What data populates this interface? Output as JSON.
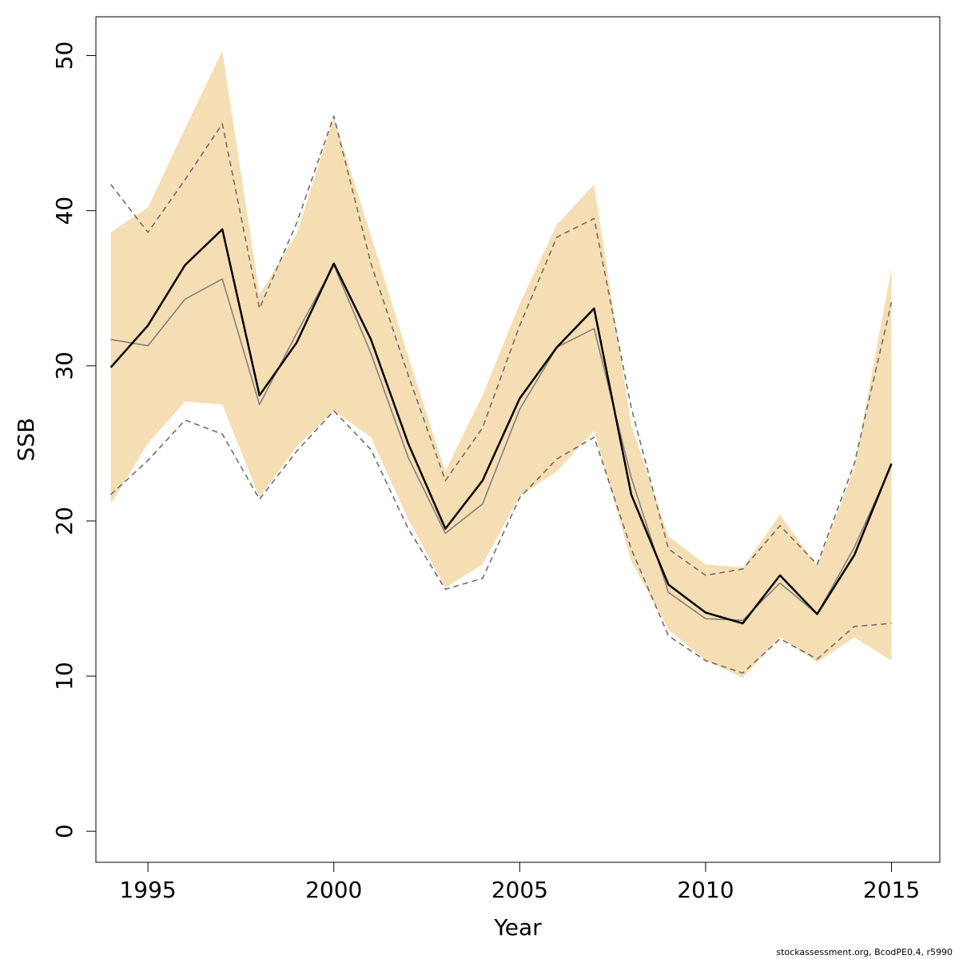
{
  "chart_data": {
    "type": "line",
    "title": "",
    "xlabel": "Year",
    "ylabel": "SSB",
    "xlim": [
      1993.6,
      2016.3
    ],
    "ylim": [
      -2,
      52.5
    ],
    "x_ticks": [
      1995,
      2000,
      2005,
      2010,
      2015
    ],
    "y_ticks": [
      0,
      10,
      20,
      30,
      40,
      50
    ],
    "grid": false,
    "colors": {
      "band": "#f5deb3",
      "main": "#000000",
      "secondary": "#808080",
      "dashed": "#6e6e6e"
    },
    "x": [
      1994,
      1995,
      1996,
      1997,
      1998,
      1999,
      2000,
      2001,
      2002,
      2003,
      2004,
      2005,
      2006,
      2007,
      2008,
      2009,
      2010,
      2011,
      2012,
      2013,
      2014,
      2015
    ],
    "band_upper": [
      38.6,
      40.2,
      45.3,
      50.3,
      34.6,
      38.5,
      46.0,
      38.4,
      30.6,
      23.2,
      28.1,
      34.0,
      39.1,
      41.7,
      26.2,
      19.0,
      17.2,
      17.0,
      20.4,
      17.1,
      23.4,
      36.3
    ],
    "band_lower": [
      21.1,
      25.0,
      27.7,
      27.5,
      21.5,
      24.8,
      27.1,
      25.4,
      20.1,
      15.7,
      17.2,
      21.6,
      23.2,
      25.8,
      17.4,
      13.0,
      11.0,
      9.9,
      12.5,
      10.9,
      12.5,
      11.0
    ],
    "series": [
      {
        "values": [
          29.9,
          32.6,
          36.5,
          38.8,
          28.1,
          31.5,
          36.6,
          31.7,
          25.0,
          19.5,
          22.6,
          27.9,
          31.2,
          33.7,
          21.7,
          15.9,
          14.1,
          13.4,
          16.5,
          14.0,
          17.8,
          23.7
        ]
      },
      {
        "values": [
          31.7,
          31.3,
          34.3,
          35.6,
          27.5,
          32.1,
          36.5,
          30.8,
          24.1,
          19.2,
          21.1,
          27.2,
          31.2,
          32.4,
          22.8,
          15.4,
          13.7,
          13.6,
          16.0,
          14.0,
          18.3,
          23.6
        ]
      },
      {
        "values": [
          41.7,
          38.6,
          42.0,
          45.6,
          33.7,
          39.2,
          46.1,
          36.6,
          29.4,
          22.6,
          26.0,
          32.6,
          38.3,
          39.5,
          27.3,
          18.2,
          16.5,
          16.9,
          19.7,
          17.2,
          23.7,
          34.1
        ]
      },
      {
        "values": [
          21.7,
          23.9,
          26.5,
          25.6,
          21.4,
          24.5,
          27.1,
          24.6,
          19.5,
          15.6,
          16.3,
          21.5,
          24.0,
          25.4,
          18.2,
          12.6,
          11.0,
          10.2,
          12.4,
          11.1,
          13.2,
          13.4
        ]
      }
    ]
  },
  "footer": {
    "text": "stockassessment.org, BcodPE0.4, r5990"
  }
}
